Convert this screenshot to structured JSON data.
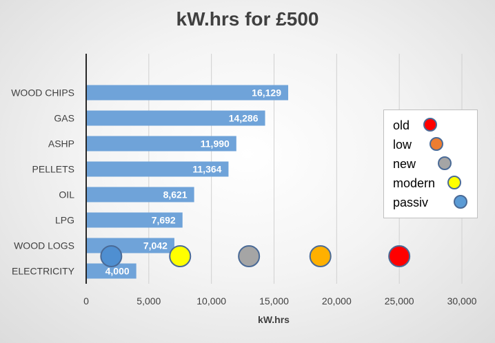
{
  "chart_data": {
    "type": "bar",
    "orientation": "horizontal",
    "title": "kW.hrs for £500",
    "xlabel": "kW.hrs",
    "ylabel": "",
    "xlim": [
      0,
      30000
    ],
    "xticks": [
      0,
      5000,
      10000,
      15000,
      20000,
      25000,
      30000
    ],
    "xtick_labels": [
      "0",
      "5,000",
      "10,000",
      "15,000",
      "20,000",
      "25,000",
      "30,000"
    ],
    "grid": "vertical",
    "categories": [
      "WOOD CHIPS",
      "GAS",
      "ASHP",
      "PELLETS",
      "OIL",
      "LPG",
      "WOOD LOGS",
      "ELECTRICITY"
    ],
    "values": [
      16129,
      14286,
      11990,
      11364,
      8621,
      7692,
      7042,
      4000
    ],
    "value_labels": [
      "16,129",
      "14,286",
      "11,990",
      "11,364",
      "8,621",
      "7,692",
      "7,042",
      "4,000"
    ],
    "bar_color": "#6fa3d9",
    "markers": [
      {
        "x": 2000,
        "color": "#4f8fd1"
      },
      {
        "x": 7500,
        "color": "#ffff00"
      },
      {
        "x": 13000,
        "color": "#a5a5a5"
      },
      {
        "x": 18700,
        "color": "#ffb000"
      },
      {
        "x": 25000,
        "color": "#ff0000"
      }
    ],
    "marker_level": "WOOD LOGS/ELECTRICITY boundary",
    "legend": {
      "position": "right",
      "entries": [
        {
          "label": "old",
          "color": "#ff0000"
        },
        {
          "label": "low",
          "color": "#ed7d31"
        },
        {
          "label": "new",
          "color": "#a5a5a5"
        },
        {
          "label": "modern",
          "color": "#ffff00"
        },
        {
          "label": "passiv",
          "color": "#5b9bd5"
        }
      ]
    }
  }
}
